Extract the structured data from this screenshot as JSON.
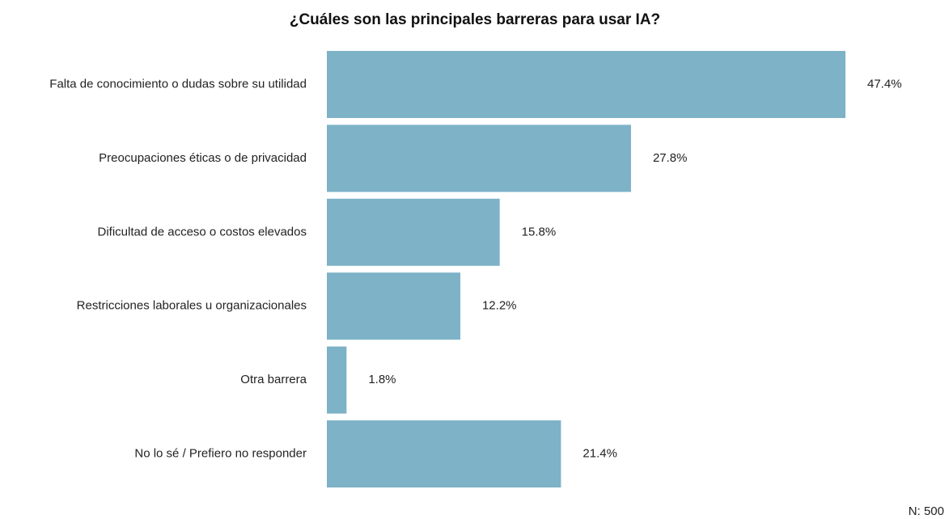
{
  "chart_data": {
    "type": "bar",
    "orientation": "horizontal",
    "title": "¿Cuáles son las principales barreras para usar IA?",
    "categories": [
      "Falta de conocimiento o dudas sobre su utilidad",
      "Preocupaciones éticas o de privacidad",
      "Dificultad de acceso o costos elevados",
      "Restricciones laborales u organizacionales",
      "Otra barrera",
      "No lo sé / Prefiero no responder"
    ],
    "values": [
      47.4,
      27.8,
      15.8,
      12.2,
      1.8,
      21.4
    ],
    "value_labels": [
      "47.4%",
      "27.8%",
      "15.8%",
      "12.2%",
      "1.8%",
      "21.4%"
    ],
    "color": "#7db2c7",
    "annotation": "N: 500"
  }
}
